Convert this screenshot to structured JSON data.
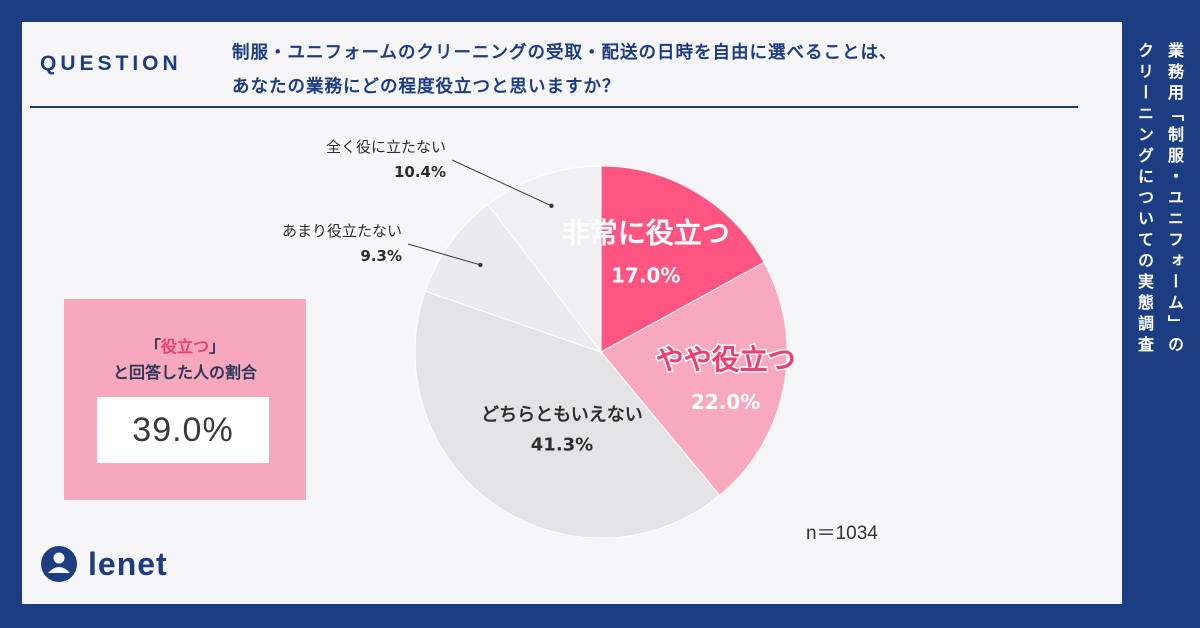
{
  "question": {
    "label": "QUESTION",
    "line1": "制服・ユニフォームのクリーニングの受取・配送の日時を自由に選べることは、",
    "line2": "あなたの業務にどの程度役立つと思いますか？"
  },
  "side_title": {
    "col1": "業務用「制服・ユニフォーム」の",
    "col2": "クリーニングについての実態調査"
  },
  "summary_box": {
    "bracket_open": "「",
    "highlight": "役立つ",
    "bracket_close": "」",
    "line2": "と回答した人の割合",
    "value": "39.0%"
  },
  "sample_size": "n＝1034",
  "logo_text": "lenet",
  "colors": {
    "navy": "#1c3d82",
    "pink_strong": "#ff5580",
    "pink_light": "#f9a9be",
    "grey_mid": "#e4e4e6",
    "grey_light": "#ebebed",
    "grey_lighter": "#f0f0f2"
  },
  "chart_data": {
    "type": "pie",
    "title": "制服・ユニフォームのクリーニングの受取・配送の日時を自由に選べることは、あなたの業務にどの程度役立つと思いますか？",
    "slices": [
      {
        "label": "非常に役立つ",
        "value": 17.0,
        "display": "17.0%",
        "color": "#ff5580"
      },
      {
        "label": "やや役立つ",
        "value": 22.0,
        "display": "22.0%",
        "color": "#f9a9be"
      },
      {
        "label": "どちらともいえない",
        "value": 41.3,
        "display": "41.3%",
        "color": "#e4e4e6"
      },
      {
        "label": "あまり役立たない",
        "value": 9.3,
        "display": "9.3%",
        "color": "#ebebed"
      },
      {
        "label": "全く役に立たない",
        "value": 10.4,
        "display": "10.4%",
        "color": "#f0f0f2"
      }
    ],
    "start": "12 o'clock",
    "direction": "clockwise",
    "n": 1034
  }
}
